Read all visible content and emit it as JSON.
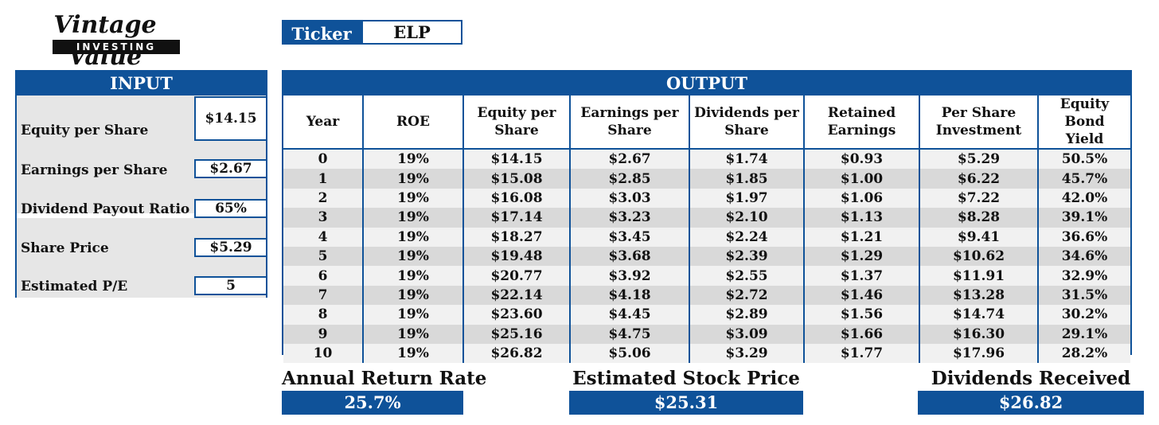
{
  "logo": {
    "script": "Vintage Value",
    "band": "INVESTING"
  },
  "ticker": {
    "label": "Ticker",
    "value": "ELP"
  },
  "input": {
    "title": "INPUT",
    "fields": [
      {
        "label": "Equity per Share",
        "value": "$14.15"
      },
      {
        "label": "Earnings per Share",
        "value": "$2.67"
      },
      {
        "label": "Dividend Payout Ratio",
        "value": "65%"
      },
      {
        "label": "Share Price",
        "value": "$5.29"
      },
      {
        "label": "Estimated P/E",
        "value": "5"
      }
    ]
  },
  "output": {
    "title": "OUTPUT",
    "headers": [
      [
        "Year"
      ],
      [
        "ROE"
      ],
      [
        "Equity per",
        "Share"
      ],
      [
        "Earnings per",
        "Share"
      ],
      [
        "Dividends per",
        "Share"
      ],
      [
        "Retained",
        "Earnings"
      ],
      [
        "Per Share",
        "Investment"
      ],
      [
        "Equity Bond",
        "Yield"
      ]
    ],
    "rows": [
      [
        "0",
        "19%",
        "$14.15",
        "$2.67",
        "$1.74",
        "$0.93",
        "$5.29",
        "50.5%"
      ],
      [
        "1",
        "19%",
        "$15.08",
        "$2.85",
        "$1.85",
        "$1.00",
        "$6.22",
        "45.7%"
      ],
      [
        "2",
        "19%",
        "$16.08",
        "$3.03",
        "$1.97",
        "$1.06",
        "$7.22",
        "42.0%"
      ],
      [
        "3",
        "19%",
        "$17.14",
        "$3.23",
        "$2.10",
        "$1.13",
        "$8.28",
        "39.1%"
      ],
      [
        "4",
        "19%",
        "$18.27",
        "$3.45",
        "$2.24",
        "$1.21",
        "$9.41",
        "36.6%"
      ],
      [
        "5",
        "19%",
        "$19.48",
        "$3.68",
        "$2.39",
        "$1.29",
        "$10.62",
        "34.6%"
      ],
      [
        "6",
        "19%",
        "$20.77",
        "$3.92",
        "$2.55",
        "$1.37",
        "$11.91",
        "32.9%"
      ],
      [
        "7",
        "19%",
        "$22.14",
        "$4.18",
        "$2.72",
        "$1.46",
        "$13.28",
        "31.5%"
      ],
      [
        "8",
        "19%",
        "$23.60",
        "$4.45",
        "$2.89",
        "$1.56",
        "$14.74",
        "30.2%"
      ],
      [
        "9",
        "19%",
        "$25.16",
        "$4.75",
        "$3.09",
        "$1.66",
        "$16.30",
        "29.1%"
      ],
      [
        "10",
        "19%",
        "$26.82",
        "$5.06",
        "$3.29",
        "$1.77",
        "$17.96",
        "28.2%"
      ]
    ]
  },
  "summary": {
    "annual_return": {
      "label": "Annual Return Rate",
      "value": "25.7%"
    },
    "estimated_price": {
      "label": "Estimated Stock Price",
      "value": "$25.31"
    },
    "dividends": {
      "label": "Dividends Received",
      "value": "$26.82"
    }
  },
  "colors": {
    "brand": "#0f5299",
    "row_light": "#f1f1f1",
    "row_dark": "#d9d9d9"
  }
}
